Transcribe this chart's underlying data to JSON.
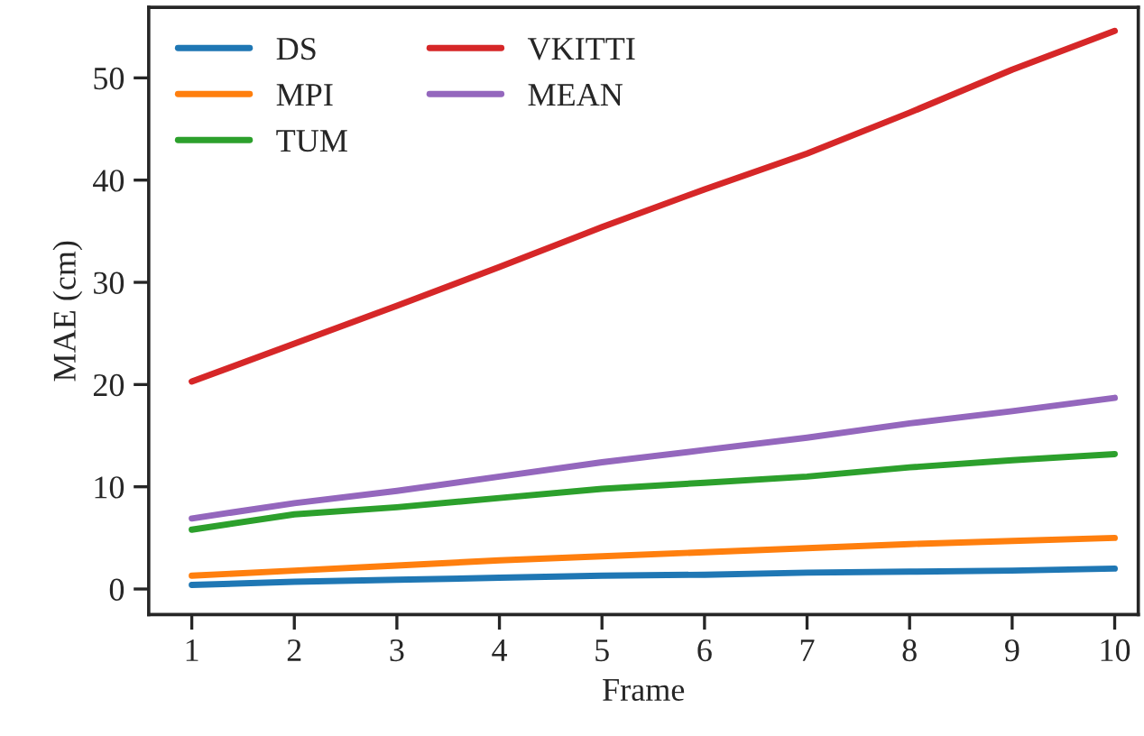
{
  "chart_data": {
    "type": "line",
    "xlabel": "Frame",
    "ylabel": "MAE (cm)",
    "x": [
      1,
      2,
      3,
      4,
      5,
      6,
      7,
      8,
      9,
      10
    ],
    "series": [
      {
        "name": "DS",
        "color": "#1f77b4",
        "values": [
          0.4,
          0.7,
          0.9,
          1.1,
          1.3,
          1.4,
          1.6,
          1.7,
          1.8,
          2.0
        ]
      },
      {
        "name": "MPI",
        "color": "#ff7f0e",
        "values": [
          1.3,
          1.8,
          2.3,
          2.8,
          3.2,
          3.6,
          4.0,
          4.4,
          4.7,
          5.0
        ]
      },
      {
        "name": "TUM",
        "color": "#2ca02c",
        "values": [
          5.8,
          7.3,
          8.0,
          8.9,
          9.8,
          10.4,
          11.0,
          11.9,
          12.6,
          13.2
        ]
      },
      {
        "name": "VKITTI",
        "color": "#d62728",
        "values": [
          20.3,
          24.0,
          27.7,
          31.5,
          35.4,
          39.1,
          42.6,
          46.6,
          50.8,
          54.6
        ]
      },
      {
        "name": "MEAN",
        "color": "#9467bd",
        "values": [
          6.9,
          8.4,
          9.6,
          11.0,
          12.4,
          13.6,
          14.8,
          16.2,
          17.4,
          18.7
        ]
      }
    ],
    "xlim": [
      0.58,
      10.23
    ],
    "ylim": [
      -2.5,
      56.9
    ],
    "xticks": [
      1,
      2,
      3,
      4,
      5,
      6,
      7,
      8,
      9,
      10
    ],
    "yticks": [
      0,
      10,
      20,
      30,
      40,
      50
    ],
    "grid": false,
    "legend": "top left",
    "marker": "none",
    "line_style": "solid"
  }
}
